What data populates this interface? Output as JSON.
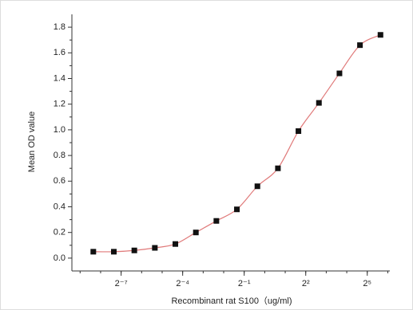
{
  "chart_data": {
    "type": "scatter",
    "x_label": "Recombinant rat  S100（ug/ml)",
    "y_label": "Mean OD value",
    "x": [
      0.0030517578125,
      0.006103515625,
      0.01220703125,
      0.0244140625,
      0.048828125,
      0.09765625,
      0.1953125,
      0.390625,
      0.78125,
      1.5625,
      3.125,
      6.25,
      12.5,
      25,
      50
    ],
    "values": [
      0.05,
      0.05,
      0.06,
      0.08,
      0.11,
      0.2,
      0.29,
      0.38,
      0.56,
      0.7,
      0.99,
      1.21,
      1.44,
      1.66,
      1.74
    ],
    "color": "#111111",
    "curve_color": "#e07a7a",
    "x_log_base": 2,
    "xlim": [
      0.00148,
      68.6
    ],
    "xticks": [
      {
        "value": 0.0078125,
        "label": "2⁻⁷"
      },
      {
        "value": 0.0625,
        "label": "2⁻⁴"
      },
      {
        "value": 0.5,
        "label": "2⁻¹"
      },
      {
        "value": 4,
        "label": "2²"
      },
      {
        "value": 32,
        "label": "2⁵"
      }
    ],
    "ylim": [
      -0.1,
      1.9
    ],
    "yticks": [
      {
        "value": 0,
        "label": "0.0"
      },
      0.2,
      0.4,
      0.6,
      0.8,
      {
        "value": 1,
        "label": "1.0"
      },
      1.2,
      1.4,
      1.6,
      1.8
    ]
  }
}
